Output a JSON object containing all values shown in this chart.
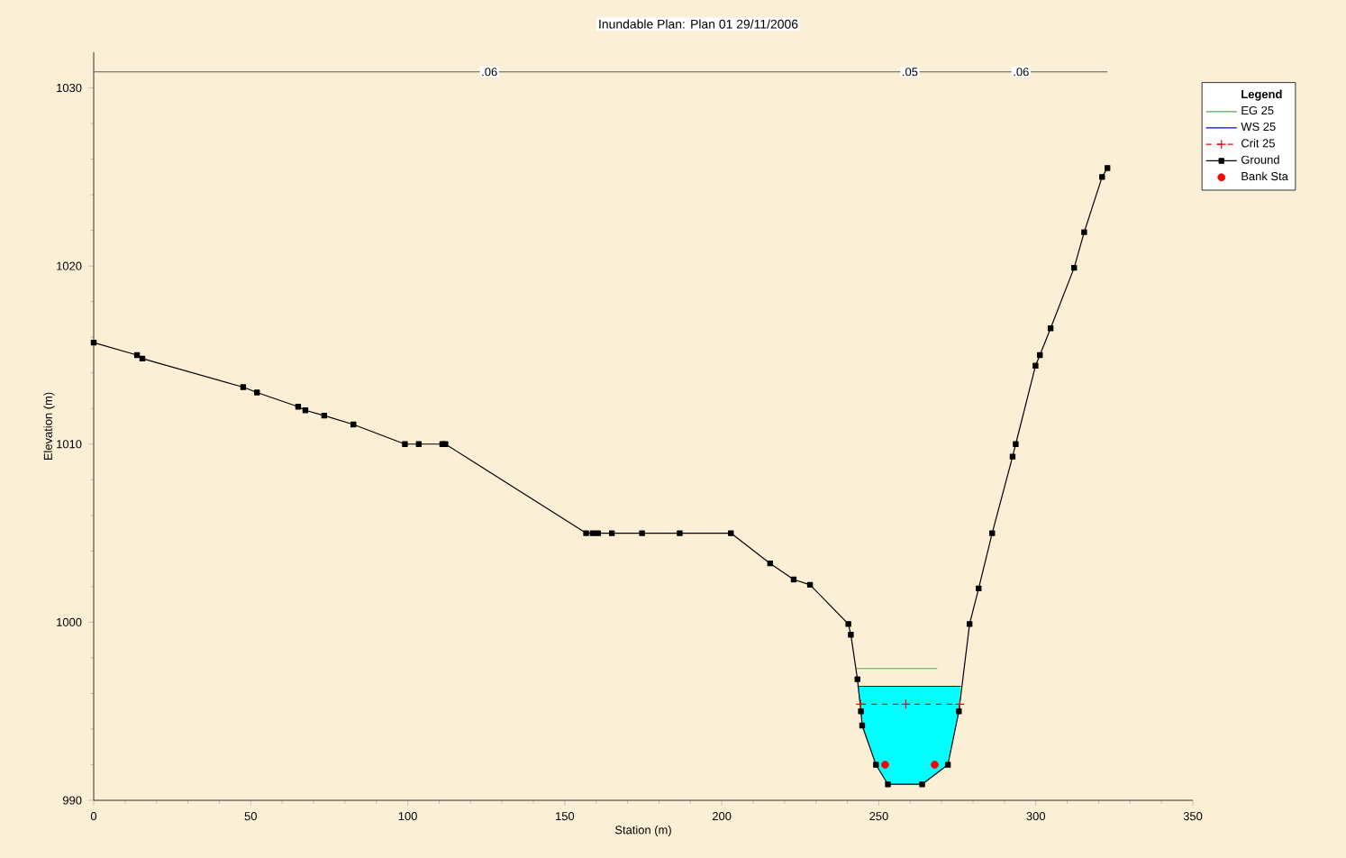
{
  "chart_data": {
    "type": "line",
    "title": "Inundable      Plan: Plan 01    29/11/2006",
    "xlabel": "Station (m)",
    "ylabel": "Elevation (m)",
    "legend_title": "Legend",
    "legend": "right",
    "xlim": [
      0,
      350
    ],
    "ylim": [
      990,
      1032
    ],
    "xticks": [
      0,
      50,
      100,
      150,
      200,
      250,
      300,
      350
    ],
    "yticks": [
      990,
      1000,
      1010,
      1020,
      1030
    ],
    "annotations": [
      {
        "text": ".06",
        "x": 126,
        "y": 1030.9
      },
      {
        "text": ".05",
        "x": 259.9,
        "y": 1030.9
      },
      {
        "text": ".06",
        "x": 295.3,
        "y": 1030.9
      }
    ],
    "series": [
      {
        "name": "EG 25",
        "color": "#50b050",
        "x": [
          242.8,
          268.6
        ],
        "values": [
          997.4,
          997.4
        ],
        "marker": "none",
        "line_style": "solid"
      },
      {
        "name": "WS 25",
        "color": "#0000ff",
        "x": [
          243.2,
          244.3,
          244.7,
          249.1,
          252.9,
          263.8,
          272,
          275.5,
          276.1
        ],
        "values": [
          996.4,
          996.4,
          996.4,
          996.4,
          996.4,
          996.4,
          996.4,
          996.4,
          996.4
        ],
        "lower": [
          996.4,
          995,
          994.2,
          992,
          990.9,
          990.9,
          992,
          995,
          996.4
        ],
        "upper": [
          996.4,
          996.4,
          996.4,
          996.4,
          996.4,
          996.4,
          996.4,
          996.4,
          996.4
        ],
        "marker": "none",
        "line_style": "solid"
      },
      {
        "name": "Crit 25",
        "color": "#ff0000",
        "x": [
          244.2,
          258.6,
          275.8
        ],
        "values": [
          995.4,
          995.4,
          995.4
        ],
        "marker": "cross",
        "line_style": "dashed"
      },
      {
        "name": "Ground",
        "color": "#000000",
        "x": [
          0,
          13.8,
          15.5,
          47.6,
          52,
          65.1,
          67.4,
          73.4,
          82.7,
          99.1,
          103.5,
          111,
          112,
          156.8,
          158.9,
          160.6,
          165,
          174.6,
          186.6,
          202.9,
          215.4,
          222.9,
          228.1,
          240.3,
          241.1,
          243.2,
          244.3,
          244.7,
          249.1,
          252.9,
          263.8,
          272,
          275.5,
          278.9,
          281.8,
          286.1,
          292.6,
          293.6,
          299.9,
          301.3,
          304.7,
          312.2,
          315.4,
          321.1,
          322.8
        ],
        "values": [
          1015.7,
          1015.0,
          1014.8,
          1013.2,
          1012.9,
          1012.1,
          1011.9,
          1011.6,
          1011.1,
          1010,
          1010,
          1010,
          1010,
          1005,
          1005,
          1005,
          1005,
          1005,
          1005,
          1005,
          1003.3,
          1002.4,
          1002.1,
          999.9,
          999.3,
          996.8,
          995,
          994.2,
          992,
          990.9,
          990.9,
          992,
          995,
          999.9,
          1001.9,
          1005,
          1009.3,
          1010,
          1014.4,
          1015,
          1016.5,
          1019.9,
          1021.9,
          1025,
          1025.5
        ],
        "marker": "square",
        "line_style": "solid"
      },
      {
        "name": "Bank Sta",
        "type": "scatter",
        "color": "#ff0000",
        "x": [
          252,
          267.8
        ],
        "values": [
          992,
          992
        ],
        "marker": "circle"
      },
      {
        "color": "#595959",
        "x": [
          0,
          252,
          267.8,
          322.8
        ],
        "values": [
          1030.9,
          1030.9,
          1030.9,
          1030.9
        ],
        "marker": "none",
        "line_style": "solid"
      }
    ]
  }
}
